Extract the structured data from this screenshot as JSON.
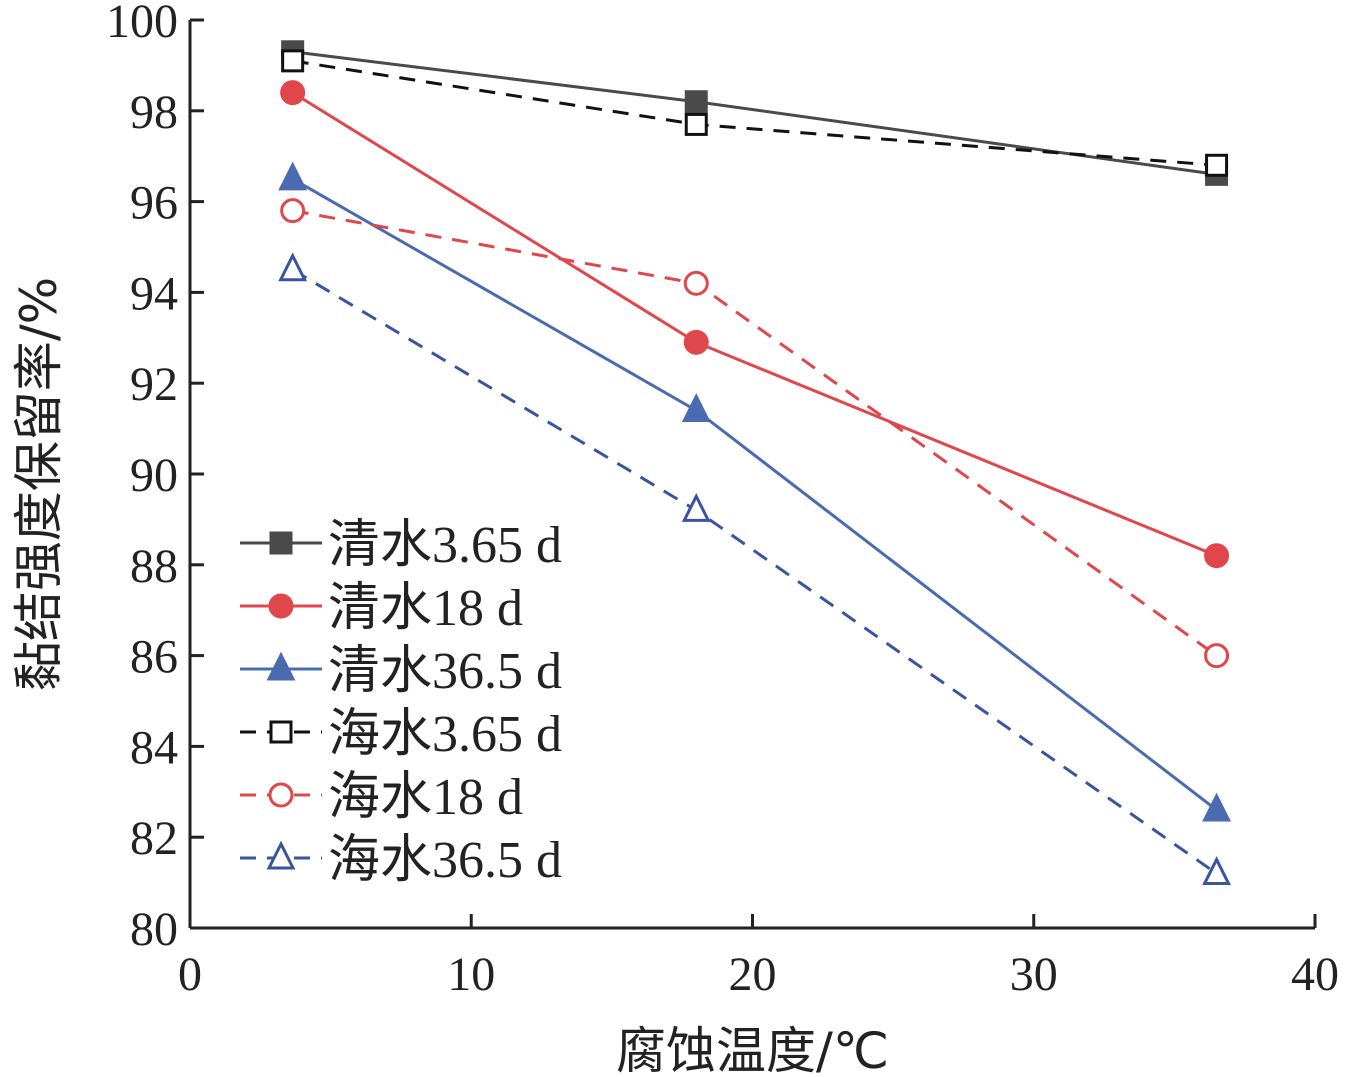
{
  "chart_data": {
    "type": "line",
    "xlabel": "腐蚀温度/℃",
    "ylabel": "黏结强度保留率/%",
    "xlim": [
      0,
      40
    ],
    "ylim": [
      80,
      100
    ],
    "xticks": [
      0,
      10,
      20,
      30,
      40
    ],
    "yticks": [
      80,
      82,
      84,
      86,
      88,
      90,
      92,
      94,
      96,
      98,
      100
    ],
    "grid": false,
    "legend_position": "bottom-left",
    "x": [
      3.65,
      18,
      36.5
    ],
    "series": [
      {
        "name": "清水3.65 d",
        "values": [
          99.3,
          98.2,
          96.6
        ],
        "color": "#4a4a4a",
        "dash": "solid",
        "marker": "square",
        "filled": true
      },
      {
        "name": "清水18 d",
        "values": [
          98.4,
          92.9,
          88.2
        ],
        "color": "#e0474c",
        "dash": "solid",
        "marker": "circle",
        "filled": true
      },
      {
        "name": "清水36.5 d",
        "values": [
          96.5,
          91.4,
          82.6
        ],
        "color": "#4a6bb0",
        "dash": "solid",
        "marker": "triangle",
        "filled": true
      },
      {
        "name": "海水3.65 d",
        "values": [
          99.1,
          97.7,
          96.8
        ],
        "color": "#111111",
        "dash": "dashed",
        "marker": "square",
        "filled": false
      },
      {
        "name": "海水18 d",
        "values": [
          95.8,
          94.2,
          86.0
        ],
        "color": "#e0474c",
        "dash": "dashed",
        "marker": "circle",
        "filled": false
      },
      {
        "name": "海水36.5 d",
        "values": [
          94.5,
          89.2,
          81.2
        ],
        "color": "#3a54a0",
        "dash": "dashed",
        "marker": "triangle",
        "filled": false
      }
    ]
  }
}
